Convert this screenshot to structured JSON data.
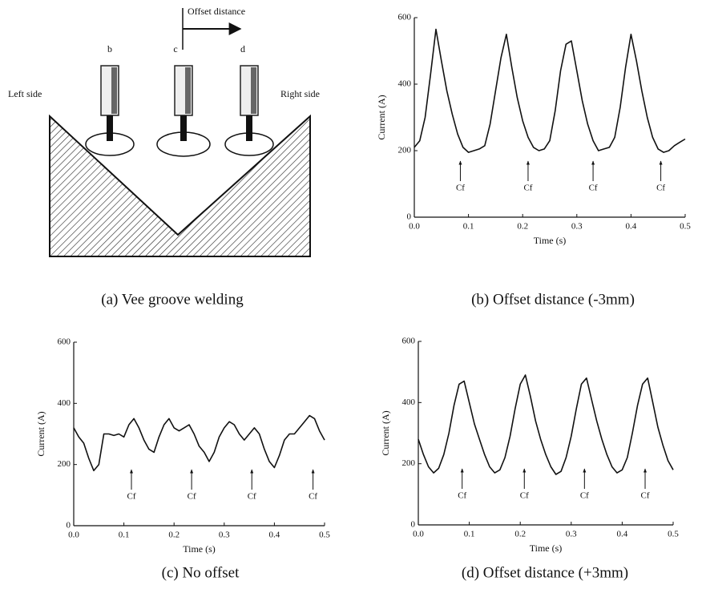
{
  "diagram": {
    "caption": "(a) Vee groove welding",
    "offset_label": "Offset distance",
    "left_label": "Left side",
    "right_label": "Right side",
    "torch_labels": [
      "b",
      "c",
      "d"
    ]
  },
  "chart_data": [
    {
      "type": "line",
      "title": "(b) Offset distance (-3mm)",
      "x_label": "Time (s)",
      "y_label": "Current (A)",
      "color": "#111111",
      "x": [
        0,
        0.01,
        0.02,
        0.03,
        0.04,
        0.05,
        0.06,
        0.07,
        0.08,
        0.09,
        0.1,
        0.11,
        0.12,
        0.13,
        0.14,
        0.15,
        0.16,
        0.17,
        0.18,
        0.19,
        0.2,
        0.21,
        0.22,
        0.23,
        0.24,
        0.25,
        0.26,
        0.27,
        0.28,
        0.29,
        0.3,
        0.31,
        0.32,
        0.33,
        0.34,
        0.35,
        0.36,
        0.37,
        0.38,
        0.39,
        0.4,
        0.41,
        0.42,
        0.43,
        0.44,
        0.45,
        0.46,
        0.47,
        0.48,
        0.49,
        0.5
      ],
      "values": [
        210,
        230,
        300,
        430,
        565,
        470,
        380,
        310,
        250,
        210,
        195,
        200,
        205,
        215,
        280,
        380,
        480,
        550,
        450,
        360,
        290,
        240,
        210,
        200,
        205,
        230,
        320,
        440,
        520,
        530,
        440,
        350,
        280,
        230,
        200,
        205,
        210,
        240,
        330,
        450,
        550,
        470,
        380,
        300,
        240,
        205,
        195,
        200,
        215,
        225,
        235
      ],
      "xlim": [
        0,
        0.5
      ],
      "xticks": [
        {
          "value": 0,
          "label": "0.0"
        },
        0.1,
        0.2,
        0.3,
        0.4,
        0.5
      ],
      "ylim": [
        0,
        600
      ],
      "yticks": [
        0,
        200,
        400,
        600
      ],
      "grid": false,
      "annotations": [
        {
          "text": "Cf",
          "x": 0.085
        },
        {
          "text": "Cf",
          "x": 0.21
        },
        {
          "text": "Cf",
          "x": 0.33
        },
        {
          "text": "Cf",
          "x": 0.455
        }
      ]
    },
    {
      "type": "line",
      "title": "(c) No offset",
      "x_label": "Time (s)",
      "y_label": "Current (A)",
      "color": "#111111",
      "x": [
        0,
        0.01,
        0.02,
        0.03,
        0.04,
        0.05,
        0.06,
        0.07,
        0.08,
        0.09,
        0.1,
        0.11,
        0.12,
        0.13,
        0.14,
        0.15,
        0.16,
        0.17,
        0.18,
        0.19,
        0.2,
        0.21,
        0.22,
        0.23,
        0.24,
        0.25,
        0.26,
        0.27,
        0.28,
        0.29,
        0.3,
        0.31,
        0.32,
        0.33,
        0.34,
        0.35,
        0.36,
        0.37,
        0.38,
        0.39,
        0.4,
        0.41,
        0.42,
        0.43,
        0.44,
        0.45,
        0.46,
        0.47,
        0.48,
        0.49,
        0.5
      ],
      "values": [
        320,
        290,
        270,
        220,
        180,
        200,
        300,
        300,
        295,
        300,
        290,
        330,
        350,
        320,
        280,
        250,
        240,
        290,
        330,
        350,
        320,
        310,
        320,
        330,
        300,
        260,
        240,
        210,
        240,
        290,
        320,
        340,
        330,
        300,
        280,
        300,
        320,
        300,
        250,
        210,
        190,
        230,
        280,
        300,
        300,
        320,
        340,
        360,
        350,
        310,
        280
      ],
      "xlim": [
        0,
        0.5
      ],
      "xticks": [
        {
          "value": 0,
          "label": "0.0"
        },
        0.1,
        0.2,
        0.3,
        0.4,
        0.5
      ],
      "ylim": [
        0,
        600
      ],
      "yticks": [
        0,
        200,
        400,
        600
      ],
      "grid": false,
      "annotations": [
        {
          "text": "Cf",
          "x": 0.115
        },
        {
          "text": "Cf",
          "x": 0.235
        },
        {
          "text": "Cf",
          "x": 0.355
        },
        {
          "text": "Cf",
          "x": 0.477
        }
      ]
    },
    {
      "type": "line",
      "title": "(d) Offset distance (+3mm)",
      "x_label": "Time (s)",
      "y_label": "Current (A)",
      "color": "#111111",
      "x": [
        0,
        0.01,
        0.02,
        0.03,
        0.04,
        0.05,
        0.06,
        0.07,
        0.08,
        0.09,
        0.1,
        0.11,
        0.12,
        0.13,
        0.14,
        0.15,
        0.16,
        0.17,
        0.18,
        0.19,
        0.2,
        0.21,
        0.22,
        0.23,
        0.24,
        0.25,
        0.26,
        0.27,
        0.28,
        0.29,
        0.3,
        0.31,
        0.32,
        0.33,
        0.34,
        0.35,
        0.36,
        0.37,
        0.38,
        0.39,
        0.4,
        0.41,
        0.42,
        0.43,
        0.44,
        0.45,
        0.46,
        0.47,
        0.48,
        0.49,
        0.5
      ],
      "values": [
        280,
        230,
        190,
        170,
        185,
        230,
        300,
        390,
        460,
        470,
        400,
        330,
        280,
        230,
        190,
        170,
        180,
        220,
        290,
        380,
        460,
        490,
        420,
        340,
        280,
        230,
        190,
        165,
        175,
        220,
        290,
        380,
        460,
        480,
        410,
        340,
        280,
        230,
        190,
        170,
        180,
        220,
        300,
        390,
        460,
        480,
        400,
        320,
        260,
        210,
        180
      ],
      "xlim": [
        0,
        0.5
      ],
      "xticks": [
        {
          "value": 0,
          "label": "0.0"
        },
        0.1,
        0.2,
        0.3,
        0.4,
        0.5
      ],
      "ylim": [
        0,
        600
      ],
      "yticks": [
        0,
        200,
        400,
        600
      ],
      "grid": false,
      "annotations": [
        {
          "text": "Cf",
          "x": 0.086
        },
        {
          "text": "Cf",
          "x": 0.208
        },
        {
          "text": "Cf",
          "x": 0.326
        },
        {
          "text": "Cf",
          "x": 0.445
        }
      ]
    }
  ]
}
